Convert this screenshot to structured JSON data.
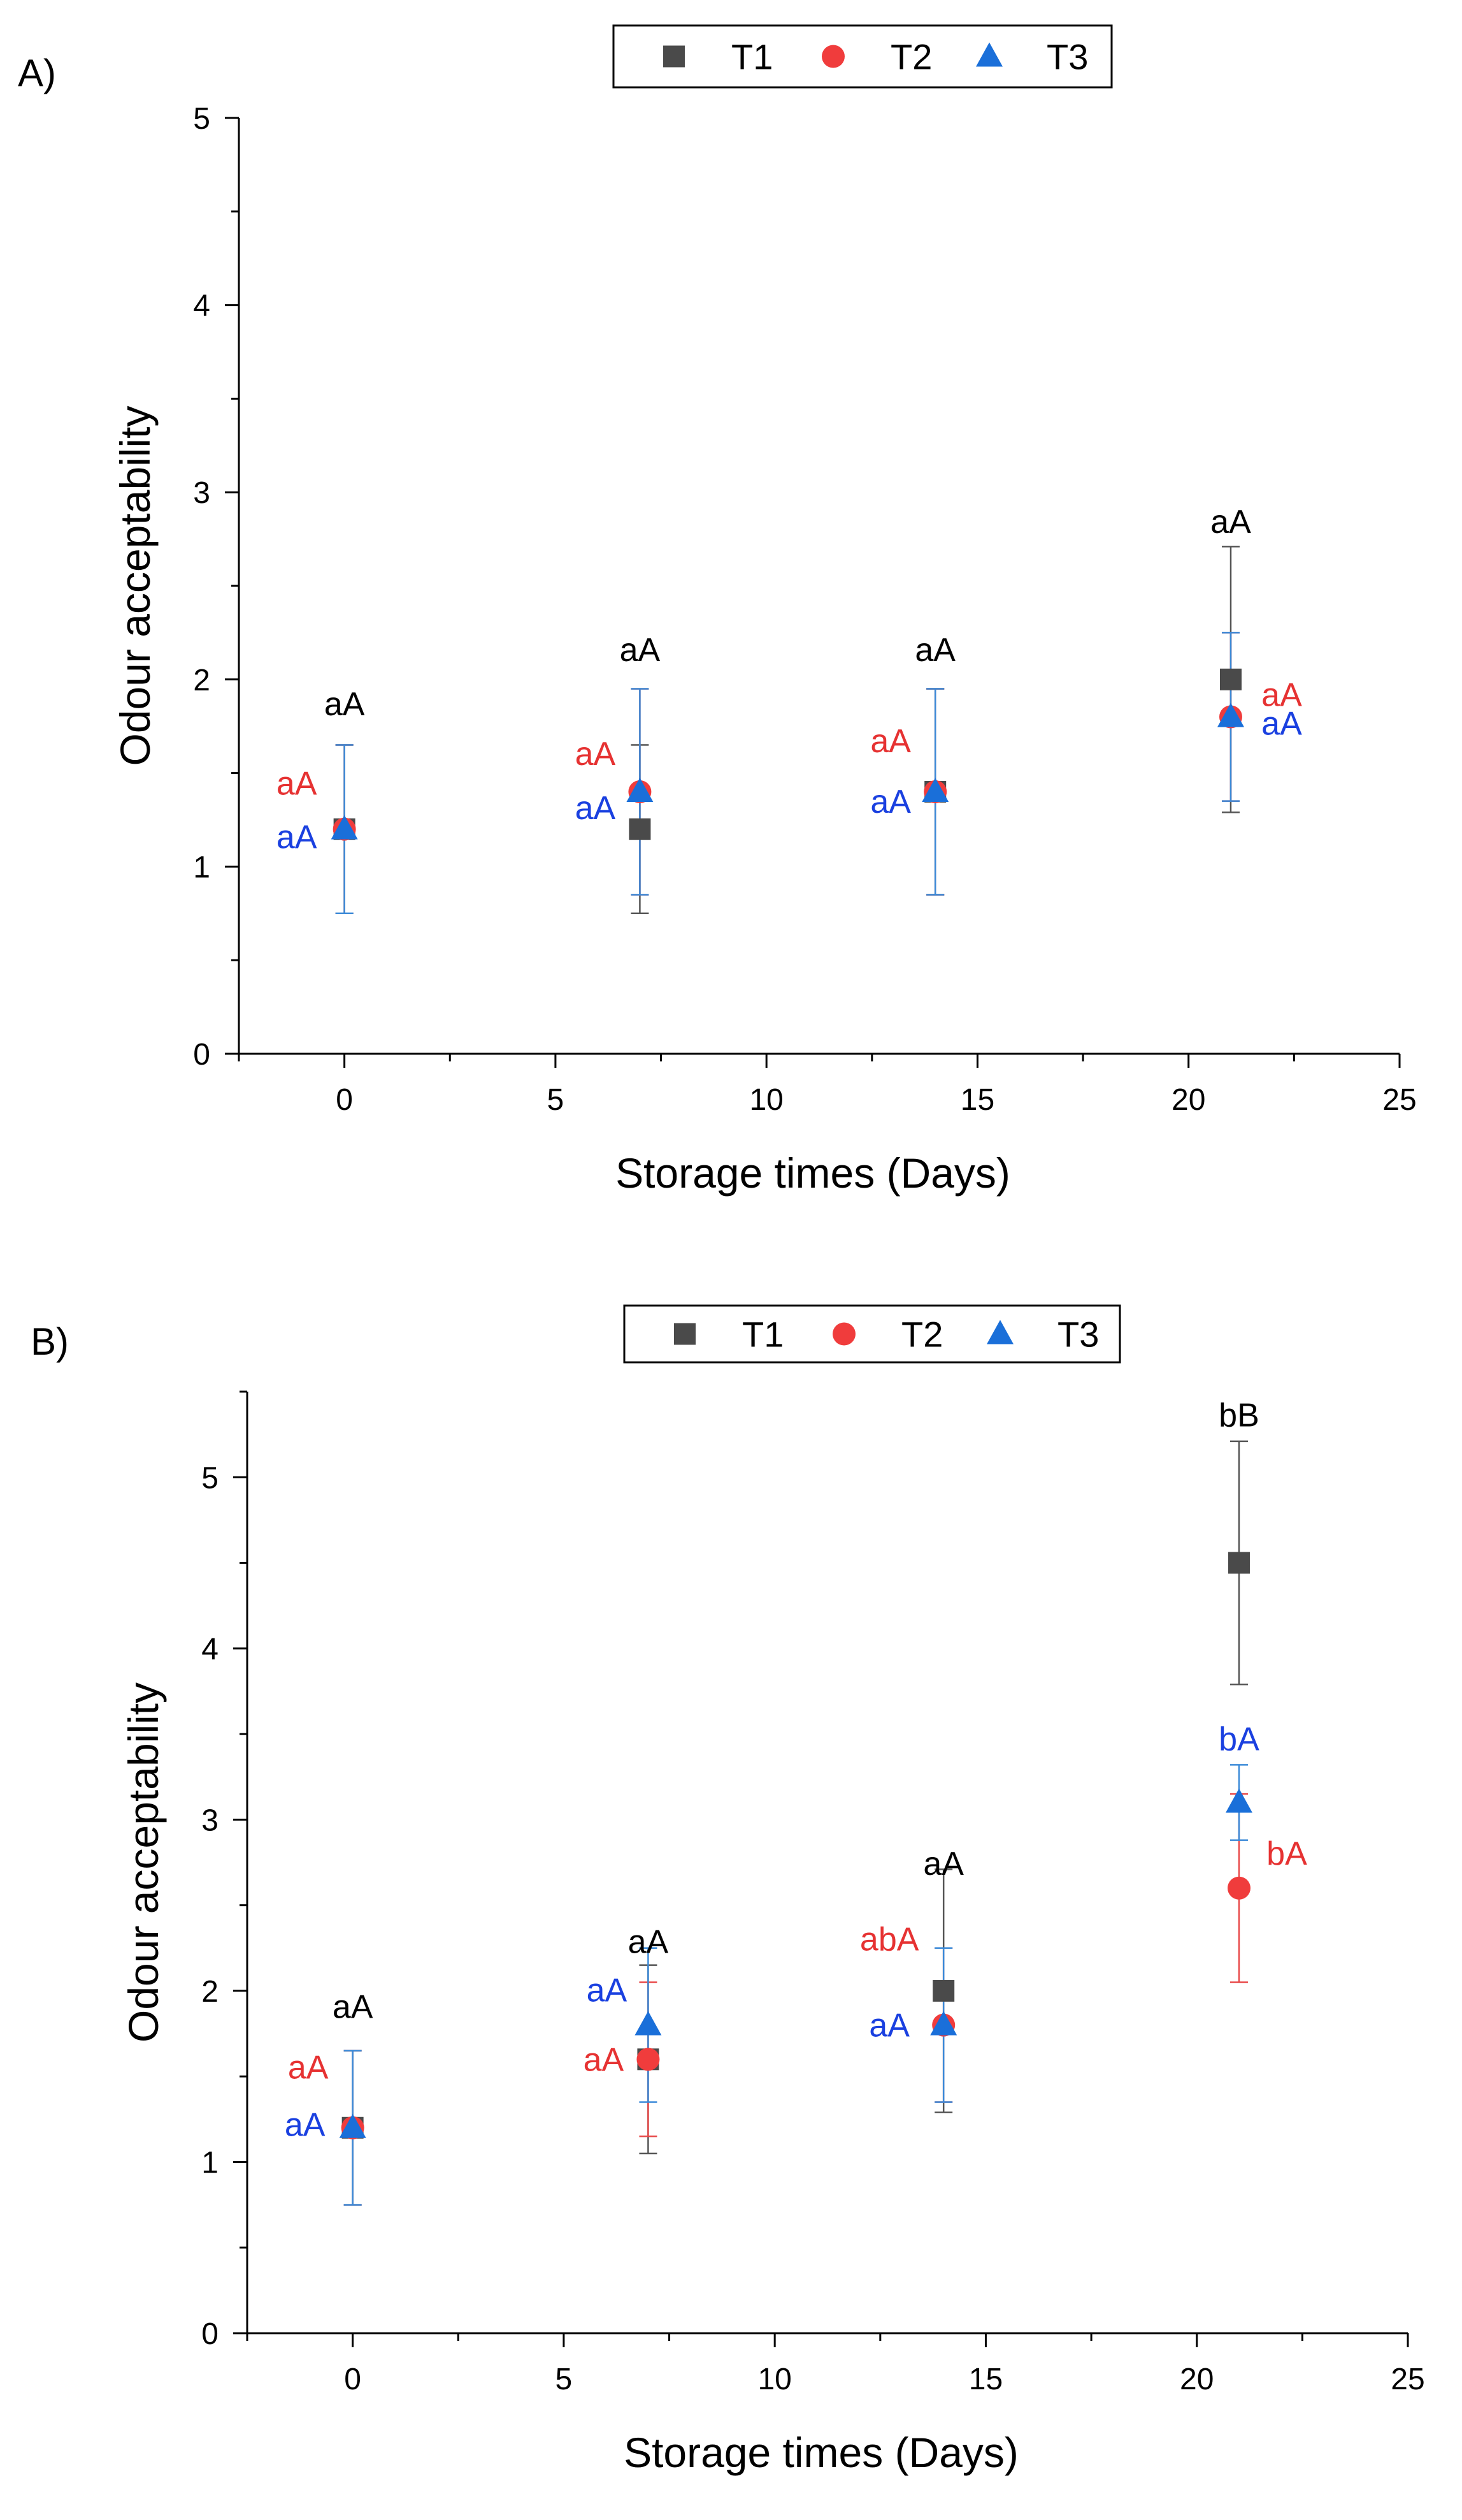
{
  "colors": {
    "T1": "#4a4a4a",
    "T2": "#f03c3c",
    "T3": "#1a6fd9",
    "axis": "#000000",
    "errorbar_blue": "#3b8ad8",
    "errorbar_grey": "#555555",
    "errorbar_red": "#e84a4a",
    "label_black": "#000000",
    "label_red": "#e63232",
    "label_blue": "#1a40e0"
  },
  "chart_data": [
    {
      "panel_label": "A)",
      "type": "scatter",
      "xlabel": "Storage times (Days)",
      "ylabel": "Odour acceptability",
      "xlim": [
        -2.5,
        25
      ],
      "ylim": [
        0,
        5
      ],
      "xticks": [
        0,
        5,
        10,
        15,
        20,
        25
      ],
      "yticks": [
        0,
        1,
        2,
        3,
        4,
        5
      ],
      "legend": [
        "T1",
        "T2",
        "T3"
      ],
      "series": [
        {
          "name": "T1",
          "marker": "square",
          "x": [
            0,
            7,
            14,
            21
          ],
          "y": [
            1.2,
            1.2,
            1.4,
            2.0
          ],
          "err": [
            0.45,
            0.45,
            0.55,
            0.71
          ],
          "labels": [
            "",
            "",
            "",
            "aA"
          ]
        },
        {
          "name": "T2",
          "marker": "circle",
          "x": [
            0,
            7,
            14,
            21
          ],
          "y": [
            1.2,
            1.4,
            1.4,
            1.8
          ],
          "err": [
            0.45,
            0.55,
            0.55,
            0.45
          ],
          "labels": [
            "aA",
            "aA",
            "aA",
            "aA"
          ]
        },
        {
          "name": "T3",
          "marker": "triangle",
          "x": [
            0,
            7,
            14,
            21
          ],
          "y": [
            1.2,
            1.4,
            1.4,
            1.8
          ],
          "err": [
            0.45,
            0.55,
            0.55,
            0.45
          ],
          "labels": [
            "aA",
            "aA",
            "aA",
            "aA"
          ]
        }
      ],
      "top_labels": [
        "aA",
        "aA",
        "aA"
      ]
    },
    {
      "panel_label": "B)",
      "type": "scatter",
      "xlabel": "Storage times (Days)",
      "ylabel": "Odour acceptability",
      "xlim": [
        -2.5,
        25
      ],
      "ylim": [
        0,
        5.5
      ],
      "xticks": [
        0,
        5,
        10,
        15,
        20,
        25
      ],
      "yticks": [
        0,
        1,
        2,
        3,
        4,
        5
      ],
      "legend": [
        "T1",
        "T2",
        "T3"
      ],
      "series": [
        {
          "name": "T1",
          "marker": "square",
          "x": [
            0,
            7,
            14,
            21
          ],
          "y": [
            1.2,
            1.6,
            2.0,
            4.5
          ],
          "err": [
            0.45,
            0.55,
            0.71,
            0.71
          ],
          "labels": [
            "aA",
            "aA",
            "aA",
            "bB"
          ]
        },
        {
          "name": "T2",
          "marker": "circle",
          "x": [
            0,
            7,
            14,
            21
          ],
          "y": [
            1.2,
            1.6,
            1.8,
            2.6
          ],
          "err": [
            0.45,
            0.45,
            0.45,
            0.55
          ],
          "labels": [
            "aA",
            "aA",
            "abA",
            "bA"
          ]
        },
        {
          "name": "T3",
          "marker": "triangle",
          "x": [
            0,
            7,
            14,
            21
          ],
          "y": [
            1.2,
            1.8,
            1.8,
            3.1
          ],
          "err": [
            0.45,
            0.45,
            0.45,
            0.22
          ],
          "labels": [
            "aA",
            "aA",
            "aA",
            "bA"
          ]
        }
      ]
    }
  ]
}
